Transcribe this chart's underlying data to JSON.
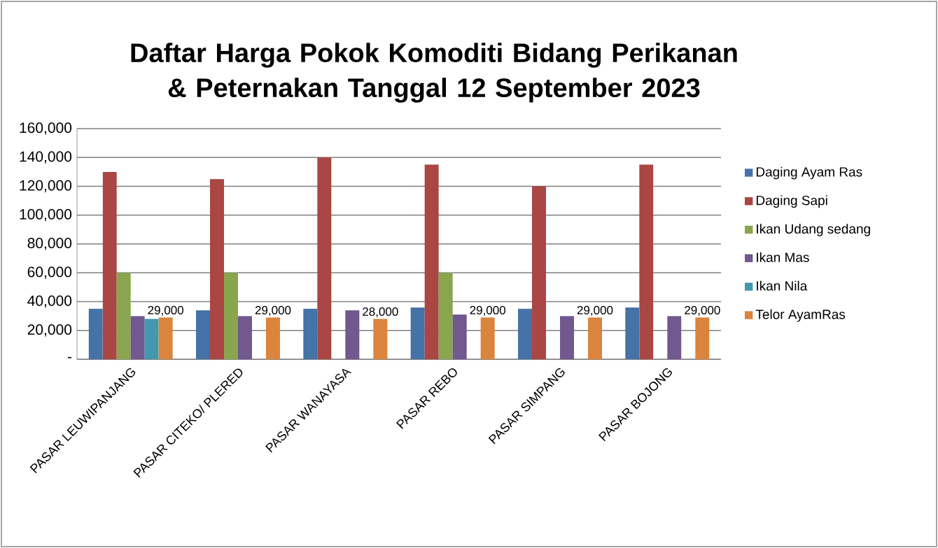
{
  "chart_data": {
    "type": "bar",
    "title": "Daftar Harga Pokok Komoditi Bidang Perikanan & Peternakan Tanggal 12 September 2023",
    "categories": [
      "PASAR LEUWIPANJANG",
      "PASAR CITEKO/ PLERED",
      "PASAR WANAYASA",
      "PASAR REBO",
      "PASAR SIMPANG",
      "PASAR BOJONG"
    ],
    "series": [
      {
        "name": "Daging Ayam Ras",
        "color": "#4572a7",
        "values": [
          35000,
          34000,
          35000,
          36000,
          35000,
          36000
        ]
      },
      {
        "name": "Daging Sapi",
        "color": "#aa4643",
        "values": [
          130000,
          125000,
          140000,
          135000,
          120000,
          135000
        ]
      },
      {
        "name": "Ikan Udang sedang",
        "color": "#89a54e",
        "values": [
          60000,
          60000,
          null,
          60000,
          null,
          null
        ]
      },
      {
        "name": "Ikan Mas",
        "color": "#71588f",
        "values": [
          30000,
          30000,
          34000,
          31000,
          30000,
          30000
        ]
      },
      {
        "name": "Ikan Nila",
        "color": "#4198af",
        "values": [
          28000,
          null,
          null,
          null,
          null,
          null
        ]
      },
      {
        "name": "Telor AyamRas",
        "color": "#db843d",
        "values": [
          29000,
          29000,
          28000,
          29000,
          29000,
          29000
        ],
        "value_labels": [
          "29,000",
          "29,000",
          "28,000",
          "29,000",
          "29,000",
          "29,000"
        ]
      }
    ],
    "ylim": [
      0,
      160000
    ],
    "yticks": [
      {
        "value": 0,
        "label": "-"
      },
      {
        "value": 20000,
        "label": "20,000"
      },
      {
        "value": 40000,
        "label": "40,000"
      },
      {
        "value": 60000,
        "label": "60,000"
      },
      {
        "value": 80000,
        "label": "80,000"
      },
      {
        "value": 100000,
        "label": "100,000"
      },
      {
        "value": 120000,
        "label": "120,000"
      },
      {
        "value": 140000,
        "label": "140,000"
      },
      {
        "value": 160000,
        "label": "160,000"
      }
    ],
    "grid": "y",
    "legend": "right"
  }
}
